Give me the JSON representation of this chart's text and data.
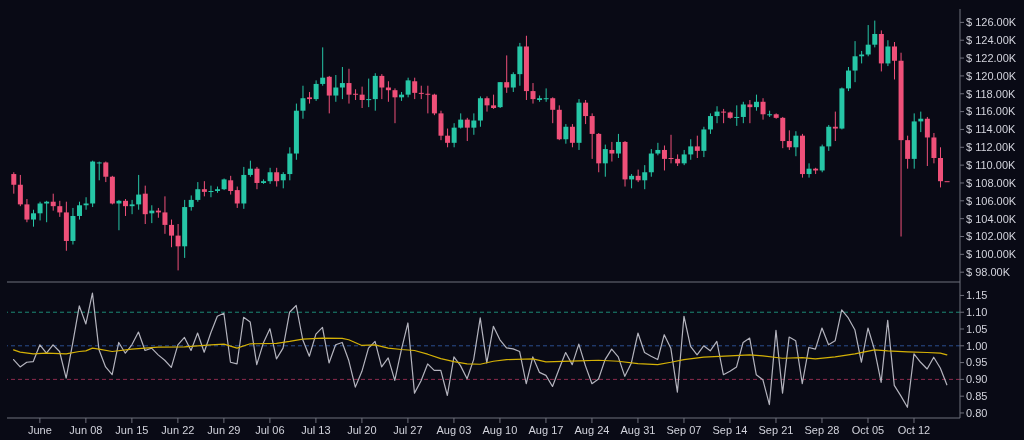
{
  "chart_data": [
    {
      "type": "candlestick",
      "x": [
        "--05-28",
        "--05-29",
        "--05-30",
        "--05-31",
        "--06-01",
        "--06-02",
        "--06-03",
        "--06-04",
        "--06-05",
        "--06-06",
        "--06-07",
        "--06-08",
        "--06-09",
        "--06-10",
        "--06-11",
        "--06-12",
        "--06-13",
        "--06-14",
        "--06-15",
        "--06-16",
        "--06-17",
        "--06-18",
        "--06-19",
        "--06-20",
        "--06-21",
        "--06-22",
        "--06-23",
        "--06-24",
        "--06-25",
        "--06-26",
        "--06-27",
        "--06-28",
        "--06-29",
        "--06-30",
        "--07-01",
        "--07-02",
        "--07-03",
        "--07-04",
        "--07-05",
        "--07-06",
        "--07-07",
        "--07-08",
        "--07-09",
        "--07-10",
        "--07-11",
        "--07-12",
        "--07-13",
        "--07-14",
        "--07-15",
        "--07-16",
        "--07-17",
        "--07-18",
        "--07-19",
        "--07-20",
        "--07-21",
        "--07-22",
        "--07-23",
        "--07-24",
        "--07-25",
        "--07-26",
        "--07-27",
        "--07-28",
        "--07-29",
        "--07-30",
        "--07-31",
        "--08-01",
        "--08-02",
        "--08-03",
        "--08-04",
        "--08-05",
        "--08-06",
        "--08-07",
        "--08-08",
        "--08-09",
        "--08-10",
        "--08-11",
        "--08-12",
        "--08-13",
        "--08-14",
        "--08-15",
        "--08-16",
        "--08-17",
        "--08-18",
        "--08-19",
        "--08-20",
        "--08-21",
        "--08-22",
        "--08-23",
        "--08-24",
        "--08-25",
        "--08-26",
        "--08-27",
        "--08-28",
        "--08-29",
        "--08-30",
        "--08-31",
        "--09-01",
        "--09-02",
        "--09-03",
        "--09-04",
        "--09-05",
        "--09-06",
        "--09-07",
        "--09-08",
        "--09-09",
        "--09-10",
        "--09-11",
        "--09-12",
        "--09-13",
        "--09-14",
        "--09-15",
        "--09-16",
        "--09-17",
        "--09-18",
        "--09-19",
        "--09-20",
        "--09-21",
        "--09-22",
        "--09-23",
        "--09-24",
        "--09-25",
        "--09-26",
        "--09-27",
        "--09-28",
        "--09-29",
        "--09-30",
        "--10-01",
        "--10-02",
        "--10-03",
        "--10-04",
        "--10-05",
        "--10-06",
        "--10-07",
        "--10-08",
        "--10-09",
        "--10-10",
        "--10-11",
        "--10-12",
        "--10-13",
        "--10-14",
        "--10-15",
        "--10-16",
        "--10-17"
      ],
      "ohlc": [
        [
          109.0,
          109.2,
          106.8,
          107.8
        ],
        [
          107.8,
          108.9,
          105.4,
          105.6
        ],
        [
          105.6,
          106.2,
          103.6,
          103.9
        ],
        [
          103.9,
          105.0,
          103.1,
          104.6
        ],
        [
          104.6,
          105.9,
          103.8,
          105.7
        ],
        [
          105.7,
          106.0,
          103.6,
          105.9
        ],
        [
          105.9,
          106.8,
          104.9,
          105.4
        ],
        [
          105.4,
          106.0,
          104.2,
          104.7
        ],
        [
          104.7,
          105.9,
          100.4,
          101.5
        ],
        [
          101.5,
          105.2,
          101.1,
          104.3
        ],
        [
          104.3,
          105.9,
          103.9,
          105.5
        ],
        [
          105.5,
          106.4,
          105.0,
          105.7
        ],
        [
          105.7,
          110.5,
          105.3,
          110.4
        ],
        [
          110.2,
          110.4,
          108.3,
          110.3
        ],
        [
          110.3,
          110.4,
          108.1,
          108.7
        ],
        [
          108.7,
          108.8,
          105.6,
          105.7
        ],
        [
          105.7,
          106.1,
          102.7,
          106.0
        ],
        [
          106.0,
          106.2,
          104.3,
          105.4
        ],
        [
          105.4,
          106.1,
          104.5,
          105.6
        ],
        [
          105.6,
          108.9,
          105.0,
          106.7
        ],
        [
          106.8,
          107.7,
          103.4,
          104.5
        ],
        [
          104.6,
          105.5,
          103.5,
          104.9
        ],
        [
          104.9,
          105.2,
          104.1,
          104.7
        ],
        [
          104.7,
          106.5,
          102.3,
          103.3
        ],
        [
          103.3,
          103.9,
          100.8,
          102.1
        ],
        [
          102.1,
          103.4,
          98.2,
          100.9
        ],
        [
          100.9,
          106.1,
          99.6,
          105.3
        ],
        [
          105.3,
          106.6,
          104.9,
          106.1
        ],
        [
          106.1,
          108.1,
          105.9,
          107.3
        ],
        [
          107.3,
          108.2,
          106.5,
          107.0
        ],
        [
          107.0,
          107.7,
          106.4,
          107.1
        ],
        [
          107.1,
          107.6,
          106.9,
          107.3
        ],
        [
          107.3,
          108.5,
          107.2,
          108.4
        ],
        [
          108.3,
          108.8,
          106.7,
          107.1
        ],
        [
          107.2,
          107.6,
          105.2,
          105.7
        ],
        [
          105.7,
          109.8,
          105.1,
          108.9
        ],
        [
          108.9,
          110.5,
          108.7,
          109.6
        ],
        [
          109.6,
          109.8,
          107.3,
          108.0
        ],
        [
          108.0,
          108.4,
          107.9,
          108.2
        ],
        [
          108.2,
          109.7,
          107.9,
          109.2
        ],
        [
          109.2,
          109.7,
          107.6,
          108.2
        ],
        [
          108.3,
          109.2,
          107.4,
          109.0
        ],
        [
          109.0,
          112.0,
          108.3,
          111.3
        ],
        [
          111.3,
          116.9,
          110.6,
          116.1
        ],
        [
          116.1,
          118.9,
          115.2,
          117.5
        ],
        [
          117.6,
          118.2,
          116.9,
          117.4
        ],
        [
          117.4,
          119.5,
          117.2,
          119.1
        ],
        [
          119.1,
          123.2,
          118.9,
          119.8
        ],
        [
          119.9,
          120.0,
          115.8,
          117.8
        ],
        [
          117.8,
          120.1,
          117.1,
          118.7
        ],
        [
          118.7,
          121.0,
          117.4,
          119.2
        ],
        [
          119.2,
          120.8,
          116.9,
          117.9
        ],
        [
          118.0,
          118.5,
          117.3,
          117.9
        ],
        [
          117.9,
          118.8,
          116.4,
          117.3
        ],
        [
          117.3,
          119.7,
          116.5,
          117.4
        ],
        [
          117.4,
          120.3,
          116.1,
          120.0
        ],
        [
          120.0,
          120.2,
          117.4,
          118.7
        ],
        [
          118.7,
          119.4,
          117.1,
          118.4
        ],
        [
          118.4,
          118.6,
          114.7,
          117.6
        ],
        [
          117.6,
          118.2,
          117.2,
          117.9
        ],
        [
          117.9,
          119.8,
          117.6,
          119.5
        ],
        [
          119.4,
          119.8,
          117.4,
          118.1
        ],
        [
          118.1,
          118.9,
          117.4,
          118.0
        ],
        [
          118.0,
          118.9,
          115.8,
          117.9
        ],
        [
          117.9,
          118.0,
          115.6,
          115.8
        ],
        [
          115.8,
          116.1,
          112.8,
          113.3
        ],
        [
          113.3,
          114.1,
          112.0,
          112.5
        ],
        [
          112.5,
          114.7,
          112.0,
          114.2
        ],
        [
          114.2,
          115.8,
          114.1,
          115.1
        ],
        [
          115.1,
          115.3,
          112.7,
          114.2
        ],
        [
          114.2,
          115.8,
          113.4,
          115.0
        ],
        [
          115.0,
          117.7,
          114.3,
          117.5
        ],
        [
          117.5,
          117.7,
          116.0,
          116.7
        ],
        [
          116.7,
          117.9,
          116.3,
          116.4
        ],
        [
          116.5,
          119.3,
          116.4,
          119.3
        ],
        [
          119.3,
          122.3,
          118.1,
          118.7
        ],
        [
          118.7,
          120.4,
          118.2,
          120.2
        ],
        [
          120.2,
          123.7,
          118.9,
          123.3
        ],
        [
          123.3,
          124.5,
          117.3,
          118.3
        ],
        [
          118.3,
          119.2,
          116.9,
          117.4
        ],
        [
          117.3,
          117.8,
          117.1,
          117.5
        ],
        [
          117.4,
          118.6,
          117.1,
          117.5
        ],
        [
          117.5,
          117.6,
          114.7,
          116.2
        ],
        [
          116.2,
          116.7,
          112.8,
          112.9
        ],
        [
          112.9,
          114.6,
          112.4,
          114.3
        ],
        [
          114.3,
          114.6,
          112.0,
          112.5
        ],
        [
          112.5,
          117.4,
          111.7,
          117.0
        ],
        [
          117.0,
          117.3,
          114.6,
          115.5
        ],
        [
          115.5,
          115.8,
          110.7,
          113.5
        ],
        [
          113.5,
          113.6,
          109.2,
          110.2
        ],
        [
          110.2,
          112.3,
          108.7,
          111.8
        ],
        [
          111.7,
          112.6,
          110.4,
          111.3
        ],
        [
          111.3,
          113.5,
          110.8,
          112.6
        ],
        [
          112.6,
          112.7,
          107.6,
          108.4
        ],
        [
          108.4,
          109.0,
          107.4,
          108.8
        ],
        [
          108.8,
          109.5,
          108.1,
          108.3
        ],
        [
          108.3,
          110.0,
          107.3,
          109.2
        ],
        [
          109.2,
          111.8,
          108.7,
          111.3
        ],
        [
          111.3,
          112.5,
          111.1,
          111.7
        ],
        [
          111.7,
          112.2,
          109.4,
          110.7
        ],
        [
          110.8,
          113.4,
          110.2,
          110.7
        ],
        [
          110.7,
          111.2,
          109.9,
          110.2
        ],
        [
          110.2,
          111.7,
          110.0,
          111.2
        ],
        [
          111.2,
          112.9,
          110.6,
          112.1
        ],
        [
          112.1,
          113.3,
          110.8,
          111.6
        ],
        [
          111.6,
          114.3,
          110.9,
          114.0
        ],
        [
          114.0,
          115.8,
          113.5,
          115.5
        ],
        [
          115.5,
          116.6,
          114.7,
          116.0
        ],
        [
          116.0,
          116.3,
          114.7,
          115.9
        ],
        [
          115.9,
          116.0,
          115.2,
          115.3
        ],
        [
          115.3,
          116.7,
          114.4,
          115.4
        ],
        [
          115.4,
          117.1,
          114.7,
          116.8
        ],
        [
          116.8,
          117.3,
          114.7,
          116.5
        ],
        [
          116.5,
          117.9,
          116.1,
          117.1
        ],
        [
          117.1,
          117.5,
          115.1,
          115.7
        ],
        [
          115.6,
          116.1,
          115.4,
          115.7
        ],
        [
          115.7,
          115.8,
          115.2,
          115.3
        ],
        [
          115.3,
          115.4,
          111.9,
          112.7
        ],
        [
          112.7,
          113.9,
          111.7,
          112.0
        ],
        [
          112.0,
          113.8,
          111.0,
          113.3
        ],
        [
          113.3,
          113.5,
          108.6,
          109.0
        ],
        [
          109.0,
          110.2,
          108.6,
          109.6
        ],
        [
          109.6,
          109.7,
          109.0,
          109.4
        ],
        [
          109.4,
          112.3,
          109.2,
          112.1
        ],
        [
          112.1,
          114.5,
          111.6,
          114.3
        ],
        [
          114.3,
          116.0,
          112.7,
          114.1
        ],
        [
          114.1,
          118.7,
          114.0,
          118.6
        ],
        [
          118.6,
          121.0,
          118.3,
          120.6
        ],
        [
          120.6,
          123.9,
          119.3,
          122.2
        ],
        [
          122.2,
          122.8,
          121.4,
          122.4
        ],
        [
          122.4,
          125.7,
          122.2,
          123.5
        ],
        [
          123.5,
          126.2,
          123.2,
          124.7
        ],
        [
          124.7,
          125.1,
          120.5,
          121.4
        ],
        [
          121.4,
          124.0,
          121.1,
          123.3
        ],
        [
          123.3,
          123.8,
          119.6,
          121.7
        ],
        [
          121.7,
          122.6,
          102.0,
          112.8
        ],
        [
          112.8,
          113.3,
          109.6,
          110.7
        ],
        [
          110.7,
          115.8,
          109.6,
          114.9
        ],
        [
          114.9,
          116.0,
          113.7,
          115.2
        ],
        [
          115.2,
          115.4,
          109.9,
          113.1
        ],
        [
          113.1,
          113.6,
          110.2,
          110.8
        ],
        [
          110.8,
          112.0,
          107.5,
          108.2
        ],
        [
          108.2,
          108.2,
          108.1,
          108.1
        ]
      ],
      "colors": [
        "#ef5079",
        "#ef5079",
        "#ef5079",
        "#26c6a6",
        "#26c6a6",
        "#26c6a6",
        "#ef5079",
        "#ef5079",
        "#ef5079",
        "#26c6a6",
        "#26c6a6",
        "#26c6a6",
        "#26c6a6",
        "#26c6a6",
        "#ef5079",
        "#ef5079",
        "#26c6a6",
        "#ef5079",
        "#26c6a6",
        "#26c6a6",
        "#ef5079",
        "#26c6a6",
        "#ef5079",
        "#ef5079",
        "#ef5079",
        "#ef5079",
        "#26c6a6",
        "#26c6a6",
        "#26c6a6",
        "#ef5079",
        "#26c6a6",
        "#26c6a6",
        "#26c6a6",
        "#ef5079",
        "#ef5079",
        "#26c6a6",
        "#26c6a6",
        "#ef5079",
        "#26c6a6",
        "#26c6a6",
        "#ef5079",
        "#26c6a6",
        "#26c6a6",
        "#26c6a6",
        "#26c6a6",
        "#ef5079",
        "#26c6a6",
        "#26c6a6",
        "#ef5079",
        "#26c6a6",
        "#26c6a6",
        "#ef5079",
        "#ef5079",
        "#ef5079",
        "#26c6a6",
        "#26c6a6",
        "#ef5079",
        "#ef5079",
        "#ef5079",
        "#26c6a6",
        "#26c6a6",
        "#ef5079",
        "#ef5079",
        "#ef5079",
        "#ef5079",
        "#ef5079",
        "#ef5079",
        "#26c6a6",
        "#26c6a6",
        "#ef5079",
        "#26c6a6",
        "#26c6a6",
        "#ef5079",
        "#ef5079",
        "#26c6a6",
        "#ef5079",
        "#26c6a6",
        "#26c6a6",
        "#ef5079",
        "#ef5079",
        "#26c6a6",
        "#26c6a6",
        "#ef5079",
        "#ef5079",
        "#26c6a6",
        "#ef5079",
        "#26c6a6",
        "#ef5079",
        "#ef5079",
        "#ef5079",
        "#26c6a6",
        "#ef5079",
        "#26c6a6",
        "#ef5079",
        "#26c6a6",
        "#ef5079",
        "#26c6a6",
        "#26c6a6",
        "#26c6a6",
        "#ef5079",
        "#ef5079",
        "#ef5079",
        "#26c6a6",
        "#26c6a6",
        "#ef5079",
        "#26c6a6",
        "#26c6a6",
        "#26c6a6",
        "#ef5079",
        "#ef5079",
        "#26c6a6",
        "#26c6a6",
        "#ef5079",
        "#26c6a6",
        "#ef5079",
        "#26c6a6",
        "#ef5079",
        "#ef5079",
        "#ef5079",
        "#26c6a6",
        "#ef5079",
        "#26c6a6",
        "#ef5079",
        "#26c6a6",
        "#26c6a6",
        "#ef5079",
        "#26c6a6",
        "#26c6a6",
        "#26c6a6",
        "#26c6a6",
        "#26c6a6",
        "#26c6a6",
        "#ef5079",
        "#26c6a6",
        "#ef5079",
        "#ef5079",
        "#ef5079",
        "#26c6a6",
        "#26c6a6",
        "#ef5079",
        "#ef5079",
        "#ef5079",
        "#ef5079"
      ],
      "xlim": [
        "--05-27",
        "--10-19"
      ],
      "ylim": [
        96.9,
        127.5
      ],
      "yticks": [
        {
          "value": 98,
          "label": "$ 98.00K"
        },
        {
          "value": 100,
          "label": "$ 100.00K"
        },
        {
          "value": 102,
          "label": "$ 102.00K"
        },
        {
          "value": 104,
          "label": "$ 104.00K"
        },
        {
          "value": 106,
          "label": "$ 106.00K"
        },
        {
          "value": 108,
          "label": "$ 108.00K"
        },
        {
          "value": 110,
          "label": "$ 110.00K"
        },
        {
          "value": 112,
          "label": "$ 112.00K"
        },
        {
          "value": 114,
          "label": "$ 114.00K"
        },
        {
          "value": 116,
          "label": "$ 116.00K"
        },
        {
          "value": 118,
          "label": "$ 118.00K"
        },
        {
          "value": 120,
          "label": "$ 120.00K"
        },
        {
          "value": 122,
          "label": "$ 122.00K"
        },
        {
          "value": 124,
          "label": "$ 124.00K"
        },
        {
          "value": 126,
          "label": "$ 126.00K"
        }
      ],
      "tick_labels": "y"
    },
    {
      "type": "line",
      "x": [
        "--05-28",
        "--05-29",
        "--05-30",
        "--05-31",
        "--06-01",
        "--06-02",
        "--06-03",
        "--06-04",
        "--06-05",
        "--06-06",
        "--06-07",
        "--06-08",
        "--06-09",
        "--06-10",
        "--06-11",
        "--06-12",
        "--06-13",
        "--06-14",
        "--06-15",
        "--06-16",
        "--06-17",
        "--06-18",
        "--06-19",
        "--06-20",
        "--06-21",
        "--06-22",
        "--06-23",
        "--06-24",
        "--06-25",
        "--06-26",
        "--06-27",
        "--06-28",
        "--06-29",
        "--06-30",
        "--07-01",
        "--07-02",
        "--07-03",
        "--07-04",
        "--07-05",
        "--07-06",
        "--07-07",
        "--07-08",
        "--07-09",
        "--07-10",
        "--07-11",
        "--07-12",
        "--07-13",
        "--07-14",
        "--07-15",
        "--07-16",
        "--07-17",
        "--07-18",
        "--07-19",
        "--07-20",
        "--07-21",
        "--07-22",
        "--07-23",
        "--07-24",
        "--07-25",
        "--07-26",
        "--07-27",
        "--07-28",
        "--07-29",
        "--07-30",
        "--07-31",
        "--08-01",
        "--08-02",
        "--08-03",
        "--08-04",
        "--08-05",
        "--08-06",
        "--08-07",
        "--08-08",
        "--08-09",
        "--08-10",
        "--08-11",
        "--08-12",
        "--08-13",
        "--08-14",
        "--08-15",
        "--08-16",
        "--08-17",
        "--08-18",
        "--08-19",
        "--08-20",
        "--08-21",
        "--08-22",
        "--08-23",
        "--08-24",
        "--08-25",
        "--08-26",
        "--08-27",
        "--08-28",
        "--08-29",
        "--08-30",
        "--08-31",
        "--09-01",
        "--09-02",
        "--09-03",
        "--09-04",
        "--09-05",
        "--09-06",
        "--09-07",
        "--09-08",
        "--09-09",
        "--09-10",
        "--09-11",
        "--09-12",
        "--09-13",
        "--09-14",
        "--09-15",
        "--09-16",
        "--09-17",
        "--09-18",
        "--09-19",
        "--09-20",
        "--09-21",
        "--09-22",
        "--09-23",
        "--09-24",
        "--09-25",
        "--09-26",
        "--09-27",
        "--09-28",
        "--09-29",
        "--09-30",
        "--10-01",
        "--10-02",
        "--10-03",
        "--10-04",
        "--10-05",
        "--10-06",
        "--10-07",
        "--10-08",
        "--10-09",
        "--10-10",
        "--10-11",
        "--10-12",
        "--10-13",
        "--10-14",
        "--10-15",
        "--10-16",
        "--10-17"
      ],
      "series": [
        {
          "color": "#b4b4be",
          "values": [
            0.959,
            0.937,
            0.951,
            0.953,
            1.003,
            0.978,
            1.003,
            0.983,
            0.904,
            1.008,
            1.119,
            1.065,
            1.157,
            0.988,
            0.937,
            0.914,
            1.01,
            0.978,
            1.003,
            1.041,
            0.986,
            0.993,
            0.973,
            0.957,
            0.936,
            1.003,
            1.025,
            0.986,
            1.038,
            0.981,
            1.038,
            1.088,
            1.097,
            0.951,
            0.946,
            1.085,
            1.071,
            0.944,
            1.008,
            1.051,
            0.961,
            0.993,
            1.1,
            1.12,
            1.018,
            0.969,
            1.035,
            1.055,
            0.949,
            1.003,
            1.01,
            0.956,
            0.877,
            0.924,
            0.993,
            1.013,
            0.937,
            0.964,
            0.897,
            0.988,
            1.068,
            0.859,
            0.896,
            0.946,
            0.927,
            0.927,
            0.852,
            0.967,
            0.941,
            0.902,
            0.959,
            1.083,
            0.949,
            1.058,
            1.018,
            0.994,
            0.991,
            0.983,
            0.887,
            0.967,
            0.921,
            0.912,
            0.879,
            0.931,
            0.98,
            0.944,
            1.005,
            0.941,
            0.887,
            0.901,
            0.959,
            0.99,
            0.967,
            0.909,
            0.949,
            1.038,
            0.98,
            0.969,
            0.959,
            1.033,
            0.993,
            0.862,
            1.088,
            0.998,
            0.973,
            1.0,
            0.985,
            1.013,
            0.914,
            0.924,
            0.937,
            1.01,
            1.023,
            0.914,
            0.899,
            0.825,
            1.046,
            0.859,
            1.026,
            1.015,
            0.887,
            0.995,
            0.99,
            1.053,
            1.003,
            1.015,
            1.107,
            1.083,
            1.048,
            0.951,
            1.053,
            0.988,
            0.891,
            1.076,
            0.882,
            0.851,
            0.817,
            0.976,
            0.951,
            0.931,
            0.966,
            0.934,
            0.884
          ]
        },
        {
          "color": "#d4b106",
          "x": [
            "--05-28",
            "--05-29",
            "--05-31",
            "--06-02",
            "--06-05",
            "--06-07",
            "--06-08",
            "--06-09",
            "--06-10",
            "--06-12",
            "--06-15",
            "--06-19",
            "--06-23",
            "--06-27",
            "--06-29",
            "--07-01",
            "--07-03",
            "--07-07",
            "--07-09",
            "--07-11",
            "--07-14",
            "--07-17",
            "--07-18",
            "--07-20",
            "--07-22",
            "--07-24",
            "--07-26",
            "--07-28",
            "--07-30",
            "--08-01",
            "--08-03",
            "--08-05",
            "--08-07",
            "--08-09",
            "--08-11",
            "--08-15",
            "--08-17",
            "--08-22",
            "--08-25",
            "--08-28",
            "--08-31",
            "--09-03",
            "--09-05",
            "--09-07",
            "--09-10",
            "--09-14",
            "--09-17",
            "--09-19",
            "--09-22",
            "--09-25",
            "--09-27",
            "--09-30",
            "--10-03",
            "--10-06",
            "--10-08",
            "--10-11",
            "--10-14",
            "--10-16",
            "--10-17"
          ],
          "values": [
            0.988,
            0.981,
            0.976,
            0.978,
            0.976,
            0.983,
            0.985,
            0.993,
            0.99,
            0.983,
            0.99,
            0.996,
            0.997,
            1.003,
            1.005,
            0.993,
            1.006,
            1.007,
            1.013,
            1.02,
            1.023,
            1.022,
            1.018,
            1.001,
            1.003,
            0.993,
            0.989,
            0.986,
            0.975,
            0.962,
            0.953,
            0.946,
            0.945,
            0.954,
            0.959,
            0.961,
            0.952,
            0.955,
            0.957,
            0.954,
            0.947,
            0.944,
            0.951,
            0.959,
            0.966,
            0.97,
            0.973,
            0.97,
            0.963,
            0.965,
            0.961,
            0.967,
            0.976,
            0.988,
            0.985,
            0.982,
            0.98,
            0.978,
            0.973
          ]
        }
      ],
      "xlim": [
        "--05-27",
        "--10-19"
      ],
      "ylim": [
        0.785,
        1.19
      ],
      "yticks": [
        {
          "value": 0.8,
          "label": "0.80"
        },
        0.85,
        {
          "value": 0.9,
          "label": "0.90"
        },
        0.95,
        {
          "value": 1,
          "label": "1.00"
        },
        1.05,
        {
          "value": 1.1,
          "label": "1.10"
        },
        1.15
      ],
      "xticks": [
        {
          "value": "--06-01",
          "label": "June"
        },
        {
          "value": "--06-08",
          "label": "Jun 08"
        },
        {
          "value": "--06-15",
          "label": "Jun 15"
        },
        {
          "value": "--06-22",
          "label": "Jun 22"
        },
        {
          "value": "--06-29",
          "label": "Jun 29"
        },
        {
          "value": "--07-06",
          "label": "Jul 06"
        },
        {
          "value": "--07-13",
          "label": "Jul 13"
        },
        {
          "value": "--07-20",
          "label": "Jul 20"
        },
        {
          "value": "--07-27",
          "label": "Jul 27"
        },
        {
          "value": "--08-03",
          "label": "Aug 03"
        },
        {
          "value": "--08-10",
          "label": "Aug 10"
        },
        {
          "value": "--08-17",
          "label": "Aug 17"
        },
        {
          "value": "--08-24",
          "label": "Aug 24"
        },
        {
          "value": "--08-31",
          "label": "Aug 31"
        },
        {
          "value": "--09-07",
          "label": "Sep 07"
        },
        {
          "value": "--09-14",
          "label": "Sep 14"
        },
        {
          "value": "--09-21",
          "label": "Sep 21"
        },
        {
          "value": "--09-28",
          "label": "Sep 28"
        },
        {
          "value": "--10-05",
          "label": "Oct 05"
        },
        {
          "value": "--10-12",
          "label": "Oct 12"
        }
      ],
      "ref_lines": [
        {
          "axis": "y",
          "value": 1.1,
          "color": "#1d8a75",
          "line_style": "dashed"
        },
        {
          "axis": "y",
          "value": 1,
          "color": "#2b4d8f",
          "line_style": "dashed"
        },
        {
          "axis": "y",
          "value": 0.9,
          "color": "#8c2c4e",
          "line_style": "dashed"
        }
      ]
    }
  ]
}
